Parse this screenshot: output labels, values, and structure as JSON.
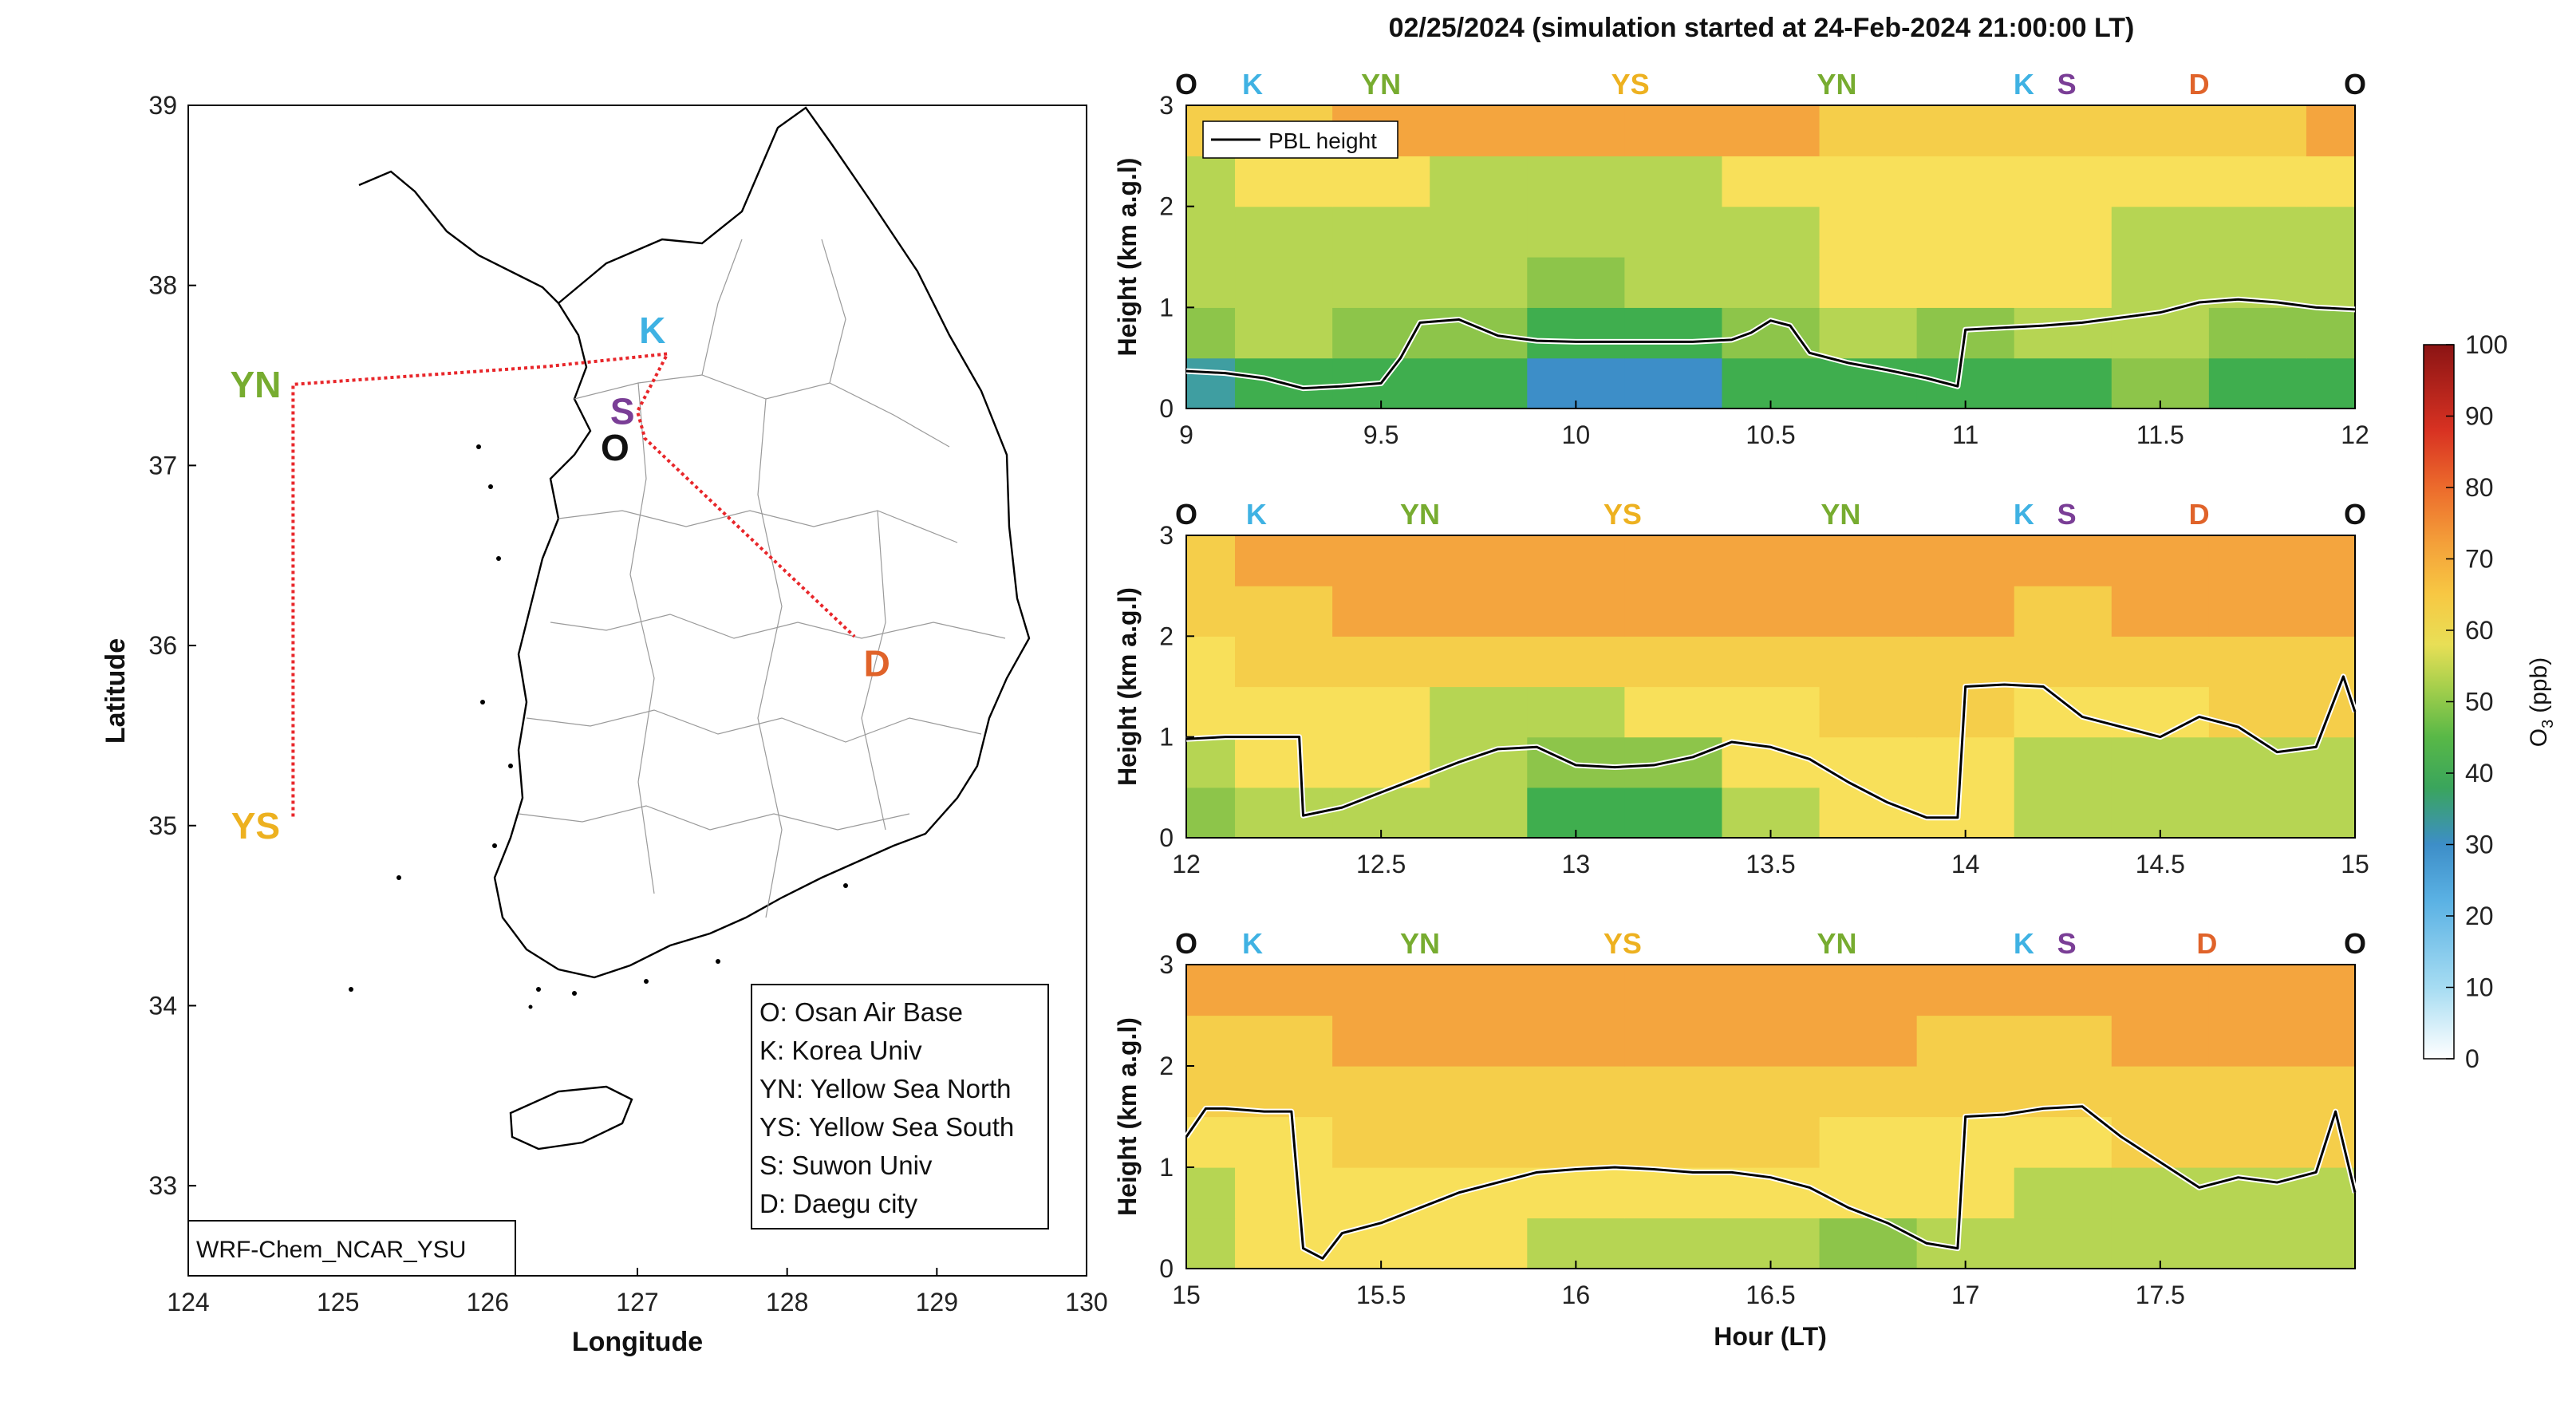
{
  "figure": {
    "title": "02/25/2024 (simulation started at 24-Feb-2024 21:00:00 LT)",
    "model_label": "WRF-Chem_NCAR_YSU"
  },
  "map": {
    "xlabel": "Longitude",
    "ylabel": "Latitude",
    "xlim": [
      124,
      130
    ],
    "ylim": [
      32.5,
      39
    ],
    "xticks": [
      "124",
      "125",
      "126",
      "127",
      "128",
      "129",
      "130"
    ],
    "yticks": [
      "33",
      "34",
      "35",
      "36",
      "37",
      "38",
      "39"
    ],
    "route_color": "#e8262a",
    "route": [
      {
        "lon": 124.7,
        "lat": 35.05
      },
      {
        "lon": 124.7,
        "lat": 37.45
      },
      {
        "lon": 126.4,
        "lat": 37.55
      },
      {
        "lon": 127.2,
        "lat": 37.62
      },
      {
        "lon": 127.0,
        "lat": 37.3
      },
      {
        "lon": 127.05,
        "lat": 37.15
      },
      {
        "lon": 128.45,
        "lat": 36.05
      }
    ],
    "sites": [
      {
        "code": "O",
        "lon": 126.85,
        "lat": 37.1,
        "color": "#111111"
      },
      {
        "code": "K",
        "lon": 127.1,
        "lat": 37.75,
        "color": "#3fb2e3"
      },
      {
        "code": "S",
        "lon": 126.9,
        "lat": 37.3,
        "color": "#7a3e96"
      },
      {
        "code": "D",
        "lon": 128.6,
        "lat": 35.9,
        "color": "#e0632a"
      },
      {
        "code": "YN",
        "lon": 124.45,
        "lat": 37.45,
        "color": "#77ac30"
      },
      {
        "code": "YS",
        "lon": 124.45,
        "lat": 35.0,
        "color": "#edb120"
      }
    ],
    "legend": [
      "O: Osan Air Base",
      "K: Korea Univ",
      "YN: Yellow Sea North",
      "YS: Yellow Sea South",
      "S: Suwon Univ",
      "D: Daegu city"
    ]
  },
  "colorbar": {
    "label": "O",
    "label_sub": "3",
    "label_unit": "(ppb)",
    "ticks": [
      "0",
      "10",
      "20",
      "30",
      "40",
      "50",
      "60",
      "70",
      "80",
      "90",
      "100"
    ]
  },
  "chart_data": [
    {
      "type": "heatmap",
      "xlabel": "",
      "ylabel": "Height (km a.g.l)",
      "xlim": [
        9,
        12
      ],
      "ylim": [
        0,
        3
      ],
      "xticks": [
        "9",
        "9.5",
        "10",
        "10.5",
        "11",
        "11.5",
        "12"
      ],
      "yticks": [
        "0",
        "1",
        "2",
        "3"
      ],
      "legend": "PBL height",
      "sites": [
        {
          "code": "O",
          "x": 9.0,
          "color": "#111111"
        },
        {
          "code": "K",
          "x": 9.17,
          "color": "#3fb2e3"
        },
        {
          "code": "YN",
          "x": 9.5,
          "color": "#77ac30"
        },
        {
          "code": "YS",
          "x": 10.14,
          "color": "#edb120"
        },
        {
          "code": "YN",
          "x": 10.67,
          "color": "#77ac30"
        },
        {
          "code": "K",
          "x": 11.15,
          "color": "#3fb2e3"
        },
        {
          "code": "S",
          "x": 11.26,
          "color": "#7a3e96"
        },
        {
          "code": "D",
          "x": 11.6,
          "color": "#e0632a"
        },
        {
          "code": "O",
          "x": 12.0,
          "color": "#111111"
        }
      ],
      "pbl_height": {
        "x": [
          9.0,
          9.1,
          9.2,
          9.3,
          9.4,
          9.5,
          9.55,
          9.6,
          9.7,
          9.8,
          9.9,
          10.0,
          10.1,
          10.2,
          10.3,
          10.4,
          10.45,
          10.5,
          10.55,
          10.6,
          10.7,
          10.8,
          10.9,
          10.98,
          11.0,
          11.1,
          11.2,
          11.3,
          11.4,
          11.5,
          11.6,
          11.7,
          11.8,
          11.9,
          12.0
        ],
        "y": [
          0.37,
          0.35,
          0.3,
          0.2,
          0.22,
          0.25,
          0.5,
          0.85,
          0.88,
          0.72,
          0.67,
          0.66,
          0.66,
          0.66,
          0.66,
          0.68,
          0.75,
          0.87,
          0.82,
          0.55,
          0.45,
          0.38,
          0.3,
          0.22,
          0.78,
          0.8,
          0.82,
          0.85,
          0.9,
          0.95,
          1.05,
          1.08,
          1.05,
          1.0,
          0.98
        ]
      },
      "o3_ppb": {
        "x": [
          9.0,
          9.25,
          9.5,
          9.75,
          10.0,
          10.25,
          10.5,
          10.75,
          11.0,
          11.25,
          11.5,
          11.75,
          12.0
        ],
        "heights": [
          0.25,
          0.75,
          1.25,
          1.75,
          2.25,
          2.75
        ],
        "values": [
          [
            38,
            40,
            42,
            40,
            34,
            34,
            42,
            44,
            42,
            44,
            46,
            44,
            44
          ],
          [
            48,
            50,
            48,
            46,
            44,
            44,
            46,
            50,
            48,
            50,
            50,
            48,
            48
          ],
          [
            52,
            54,
            50,
            50,
            48,
            50,
            52,
            56,
            56,
            56,
            54,
            54,
            54
          ],
          [
            50,
            50,
            52,
            52,
            52,
            52,
            54,
            56,
            56,
            56,
            54,
            54,
            54
          ],
          [
            54,
            56,
            56,
            52,
            52,
            52,
            56,
            58,
            58,
            58,
            58,
            56,
            56
          ],
          [
            62,
            64,
            66,
            66,
            66,
            66,
            66,
            64,
            62,
            60,
            62,
            64,
            66
          ]
        ]
      }
    },
    {
      "type": "heatmap",
      "xlabel": "",
      "ylabel": "Height (km a.g.l)",
      "xlim": [
        12,
        15
      ],
      "ylim": [
        0,
        3
      ],
      "xticks": [
        "12",
        "12.5",
        "13",
        "13.5",
        "14",
        "14.5",
        "15"
      ],
      "yticks": [
        "0",
        "1",
        "2",
        "3"
      ],
      "sites": [
        {
          "code": "O",
          "x": 12.0,
          "color": "#111111"
        },
        {
          "code": "K",
          "x": 12.18,
          "color": "#3fb2e3"
        },
        {
          "code": "YN",
          "x": 12.6,
          "color": "#77ac30"
        },
        {
          "code": "YS",
          "x": 13.12,
          "color": "#edb120"
        },
        {
          "code": "YN",
          "x": 13.68,
          "color": "#77ac30"
        },
        {
          "code": "K",
          "x": 14.15,
          "color": "#3fb2e3"
        },
        {
          "code": "S",
          "x": 14.26,
          "color": "#7a3e96"
        },
        {
          "code": "D",
          "x": 14.6,
          "color": "#e0632a"
        },
        {
          "code": "O",
          "x": 15.0,
          "color": "#111111"
        }
      ],
      "pbl_height": {
        "x": [
          12.0,
          12.1,
          12.2,
          12.29,
          12.3,
          12.4,
          12.5,
          12.6,
          12.7,
          12.8,
          12.9,
          13.0,
          13.1,
          13.2,
          13.3,
          13.4,
          13.5,
          13.6,
          13.7,
          13.8,
          13.9,
          13.98,
          14.0,
          14.1,
          14.2,
          14.3,
          14.4,
          14.5,
          14.6,
          14.7,
          14.8,
          14.9,
          14.97,
          15.0
        ],
        "y": [
          0.98,
          1.0,
          1.0,
          1.0,
          0.22,
          0.3,
          0.45,
          0.6,
          0.75,
          0.88,
          0.9,
          0.72,
          0.7,
          0.72,
          0.8,
          0.95,
          0.9,
          0.78,
          0.55,
          0.35,
          0.2,
          0.2,
          1.5,
          1.52,
          1.5,
          1.2,
          1.1,
          1.0,
          1.2,
          1.1,
          0.85,
          0.9,
          1.6,
          1.25
        ]
      },
      "o3_ppb": {
        "x": [
          12.0,
          12.25,
          12.5,
          12.75,
          13.0,
          13.25,
          13.5,
          13.75,
          14.0,
          14.25,
          14.5,
          14.75,
          15.0
        ],
        "heights": [
          0.25,
          0.75,
          1.25,
          1.75,
          2.25,
          2.75
        ],
        "values": [
          [
            48,
            52,
            54,
            50,
            40,
            44,
            54,
            56,
            56,
            52,
            50,
            52,
            52
          ],
          [
            52,
            56,
            56,
            52,
            46,
            48,
            56,
            58,
            58,
            54,
            54,
            54,
            54
          ],
          [
            58,
            58,
            58,
            54,
            52,
            56,
            58,
            60,
            60,
            56,
            58,
            60,
            62
          ],
          [
            58,
            60,
            62,
            64,
            62,
            62,
            62,
            64,
            60,
            62,
            62,
            64,
            64
          ],
          [
            60,
            62,
            66,
            68,
            68,
            68,
            68,
            68,
            66,
            64,
            66,
            66,
            66
          ],
          [
            64,
            66,
            68,
            68,
            68,
            68,
            68,
            68,
            68,
            66,
            66,
            68,
            68
          ]
        ]
      }
    },
    {
      "type": "heatmap",
      "xlabel": "Hour (LT)",
      "ylabel": "Height (km a.g.l)",
      "xlim": [
        15,
        18
      ],
      "ylim": [
        0,
        3
      ],
      "xticks": [
        "15",
        "15.5",
        "16",
        "16.5",
        "17",
        "17.5"
      ],
      "yticks": [
        "0",
        "1",
        "2",
        "3"
      ],
      "sites": [
        {
          "code": "O",
          "x": 15.0,
          "color": "#111111"
        },
        {
          "code": "K",
          "x": 15.17,
          "color": "#3fb2e3"
        },
        {
          "code": "YN",
          "x": 15.6,
          "color": "#77ac30"
        },
        {
          "code": "YS",
          "x": 16.12,
          "color": "#edb120"
        },
        {
          "code": "YN",
          "x": 16.67,
          "color": "#77ac30"
        },
        {
          "code": "K",
          "x": 17.15,
          "color": "#3fb2e3"
        },
        {
          "code": "S",
          "x": 17.26,
          "color": "#7a3e96"
        },
        {
          "code": "D",
          "x": 17.62,
          "color": "#e0632a"
        },
        {
          "code": "O",
          "x": 18.0,
          "color": "#111111"
        }
      ],
      "pbl_height": {
        "x": [
          15.0,
          15.05,
          15.1,
          15.2,
          15.27,
          15.3,
          15.35,
          15.4,
          15.5,
          15.6,
          15.7,
          15.8,
          15.9,
          16.0,
          16.1,
          16.2,
          16.3,
          16.4,
          16.5,
          16.6,
          16.7,
          16.8,
          16.9,
          16.98,
          17.0,
          17.1,
          17.2,
          17.3,
          17.4,
          17.5,
          17.6,
          17.7,
          17.8,
          17.9,
          17.95,
          18.0
        ],
        "y": [
          1.3,
          1.58,
          1.58,
          1.55,
          1.55,
          0.2,
          0.1,
          0.35,
          0.45,
          0.6,
          0.75,
          0.85,
          0.95,
          0.98,
          1.0,
          0.98,
          0.95,
          0.95,
          0.9,
          0.8,
          0.6,
          0.45,
          0.25,
          0.2,
          1.5,
          1.52,
          1.58,
          1.6,
          1.3,
          1.05,
          0.8,
          0.9,
          0.85,
          0.95,
          1.55,
          0.75
        ]
      },
      "o3_ppb": {
        "x": [
          15.0,
          15.25,
          15.5,
          15.75,
          16.0,
          16.25,
          16.5,
          16.75,
          17.0,
          17.25,
          17.5,
          17.75,
          18.0
        ],
        "heights": [
          0.25,
          0.75,
          1.25,
          1.75,
          2.25,
          2.75
        ],
        "values": [
          [
            54,
            56,
            56,
            56,
            54,
            54,
            52,
            48,
            54,
            54,
            54,
            54,
            52
          ],
          [
            54,
            56,
            58,
            58,
            56,
            56,
            56,
            56,
            56,
            54,
            54,
            54,
            54
          ],
          [
            56,
            58,
            60,
            60,
            64,
            64,
            60,
            58,
            58,
            58,
            60,
            60,
            60
          ],
          [
            60,
            60,
            60,
            60,
            60,
            60,
            60,
            60,
            60,
            60,
            64,
            62,
            62
          ],
          [
            64,
            64,
            66,
            68,
            68,
            68,
            68,
            66,
            64,
            64,
            66,
            66,
            66
          ],
          [
            66,
            66,
            68,
            68,
            68,
            68,
            68,
            68,
            68,
            66,
            66,
            68,
            68
          ]
        ]
      }
    }
  ]
}
